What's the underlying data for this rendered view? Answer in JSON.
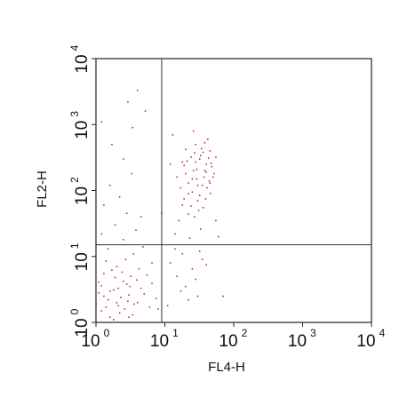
{
  "chart_data": {
    "type": "scatter",
    "title": "",
    "xlabel": "FL4-H",
    "ylabel": "FL2-H",
    "x_scale": "log",
    "y_scale": "log",
    "xlim": [
      1,
      10000
    ],
    "ylim": [
      1,
      10000
    ],
    "x_ticks": [
      {
        "value": 1,
        "base": "10",
        "exp": "0"
      },
      {
        "value": 10,
        "base": "10",
        "exp": "1"
      },
      {
        "value": 100,
        "base": "10",
        "exp": "2"
      },
      {
        "value": 1000,
        "base": "10",
        "exp": "3"
      },
      {
        "value": 10000,
        "base": "10",
        "exp": "4"
      }
    ],
    "y_ticks": [
      {
        "value": 1,
        "base": "10",
        "exp": "0"
      },
      {
        "value": 10,
        "base": "10",
        "exp": "1"
      },
      {
        "value": 100,
        "base": "10",
        "exp": "2"
      },
      {
        "value": 1000,
        "base": "10",
        "exp": "3"
      },
      {
        "value": 10000,
        "base": "10",
        "exp": "4"
      }
    ],
    "quadrant_gates": {
      "x": 9,
      "y": 15
    },
    "grid": false,
    "legend": "none",
    "point_color": "#b01818",
    "series": [
      {
        "points": [
          [
            1.2,
            1.5
          ],
          [
            1.5,
            2.2
          ],
          [
            1.8,
            3.1
          ],
          [
            2.1,
            1.8
          ],
          [
            2.5,
            4.2
          ],
          [
            3.0,
            2.6
          ],
          [
            3.4,
            1.3
          ],
          [
            1.3,
            5.5
          ],
          [
            2.0,
            7.0
          ],
          [
            2.8,
            3.8
          ],
          [
            4.0,
            2.0
          ],
          [
            1.6,
            1.2
          ],
          [
            1.1,
            2.8
          ],
          [
            2.3,
            2.4
          ],
          [
            3.2,
            5.0
          ],
          [
            1.4,
            8.5
          ],
          [
            2.6,
            1.6
          ],
          [
            4.5,
            3.3
          ],
          [
            1.9,
            4.8
          ],
          [
            3.6,
            1.9
          ],
          [
            1.2,
            3.6
          ],
          [
            2.2,
            1.4
          ],
          [
            5.0,
            2.7
          ],
          [
            1.7,
            6.2
          ],
          [
            2.9,
            2.1
          ],
          [
            1.0,
            1.9
          ],
          [
            1.3,
            2.5
          ],
          [
            2.4,
            5.8
          ],
          [
            3.9,
            4.4
          ],
          [
            6.0,
            1.7
          ],
          [
            1.6,
            3.0
          ],
          [
            2.0,
            2.0
          ],
          [
            3.1,
            3.5
          ],
          [
            1.1,
            4.1
          ],
          [
            4.2,
            6.5
          ],
          [
            2.7,
            9.0
          ],
          [
            1.5,
            13.0
          ],
          [
            2.5,
            18.0
          ],
          [
            3.5,
            11.0
          ],
          [
            1.2,
            22.0
          ],
          [
            4.8,
            14.0
          ],
          [
            6.5,
            3.9
          ],
          [
            7.5,
            2.3
          ],
          [
            1.8,
            1.1
          ],
          [
            3.0,
            1.2
          ],
          [
            1.4,
            1.7
          ],
          [
            2.1,
            3.3
          ],
          [
            5.5,
            5.2
          ],
          [
            1.9,
            30.0
          ],
          [
            2.8,
            45.0
          ],
          [
            1.3,
            60.0
          ],
          [
            3.8,
            25.0
          ],
          [
            2.2,
            80.0
          ],
          [
            1.6,
            120.0
          ],
          [
            4.5,
            40.0
          ],
          [
            3.3,
            180.0
          ],
          [
            2.5,
            300.0
          ],
          [
            6.5,
            8.0
          ],
          [
            1.7,
            500.0
          ],
          [
            3.4,
            900.0
          ],
          [
            2.9,
            2200.0
          ],
          [
            4.0,
            3300.0
          ],
          [
            5.2,
            1600.0
          ],
          [
            1.2,
            1100.0
          ],
          [
            14,
            22
          ],
          [
            18,
            60
          ],
          [
            25,
            150
          ],
          [
            32,
            300
          ],
          [
            22,
            90
          ],
          [
            40,
            250
          ],
          [
            28,
            500
          ],
          [
            16,
            35
          ],
          [
            20,
            180
          ],
          [
            35,
            120
          ],
          [
            45,
            400
          ],
          [
            30,
            70
          ],
          [
            38,
            200
          ],
          [
            24,
            320
          ],
          [
            50,
            160
          ],
          [
            19,
            240
          ],
          [
            27,
            40
          ],
          [
            42,
            600
          ],
          [
            33,
            26
          ],
          [
            22,
            130
          ],
          [
            46,
            90
          ],
          [
            29,
            210
          ],
          [
            36,
            380
          ],
          [
            17,
            110
          ],
          [
            31,
            50
          ],
          [
            26,
            800
          ],
          [
            44,
            140
          ],
          [
            21,
            280
          ],
          [
            39,
            75
          ],
          [
            23,
            19
          ],
          [
            48,
            230
          ],
          [
            34,
            430
          ],
          [
            15,
            160
          ],
          [
            41,
            110
          ],
          [
            28,
            270
          ],
          [
            37,
            160
          ],
          [
            24,
            58
          ],
          [
            55,
            320
          ],
          [
            30,
            120
          ],
          [
            20,
            420
          ],
          [
            26,
            200
          ],
          [
            43,
            310
          ],
          [
            32,
            85
          ],
          [
            18,
            270
          ],
          [
            36,
            55
          ],
          [
            52,
            180
          ],
          [
            27,
            370
          ],
          [
            47,
            260
          ],
          [
            22,
            44
          ],
          [
            38,
            530
          ],
          [
            29,
            150
          ],
          [
            33,
            340
          ],
          [
            25,
            95
          ],
          [
            40,
            190
          ],
          [
            45,
            130
          ],
          [
            19,
            75
          ],
          [
            12,
            8.0
          ],
          [
            15,
            5.0
          ],
          [
            20,
            3.5
          ],
          [
            25,
            6.5
          ],
          [
            30,
            2.5
          ],
          [
            18,
            11.0
          ],
          [
            35,
            9.0
          ],
          [
            11,
            1.8
          ],
          [
            22,
            2.2
          ],
          [
            28,
            4.5
          ],
          [
            40,
            7.5
          ],
          [
            17,
            3.0
          ],
          [
            14,
            13.0
          ],
          [
            32,
            12.0
          ],
          [
            60,
            20
          ],
          [
            70,
            2.5
          ],
          [
            8,
            1.6
          ],
          [
            9,
            45
          ],
          [
            12,
            250
          ],
          [
            13,
            700
          ],
          [
            55,
            35
          ]
        ]
      }
    ]
  }
}
